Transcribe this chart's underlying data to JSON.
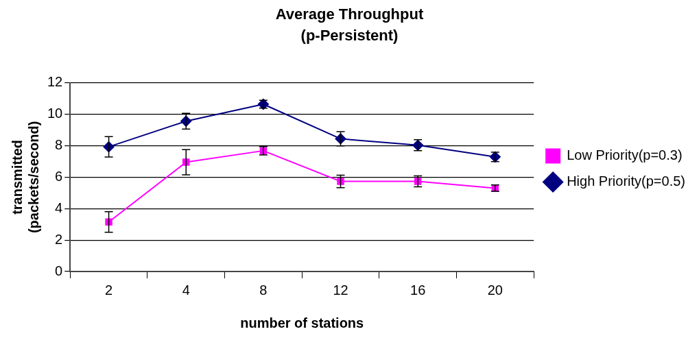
{
  "chart_data": {
    "type": "line",
    "title": "Average Throughput",
    "subtitle": "(p-Persistent)",
    "xlabel": "number of stations",
    "ylabel": "transmitted (packets/second)",
    "categories": [
      "2",
      "4",
      "8",
      "12",
      "16",
      "20"
    ],
    "series": [
      {
        "name": "Low Priority(p=0.3)",
        "color": "#ff00ff",
        "marker": "square",
        "values": [
          3.15,
          6.95,
          7.68,
          5.73,
          5.73,
          5.3
        ],
        "errors": [
          0.65,
          0.8,
          0.27,
          0.4,
          0.35,
          0.2
        ]
      },
      {
        "name": "High Priority(p=0.5)",
        "color": "#000080",
        "marker": "diamond",
        "values": [
          7.93,
          9.56,
          10.64,
          8.44,
          8.03,
          7.29
        ],
        "errors": [
          0.65,
          0.5,
          0.25,
          0.45,
          0.35,
          0.3
        ]
      }
    ],
    "ylim": [
      0,
      12
    ],
    "yticks": [
      0,
      2,
      4,
      6,
      8,
      10,
      12
    ],
    "grid": "y",
    "legend": "right",
    "line_style": "solid"
  }
}
